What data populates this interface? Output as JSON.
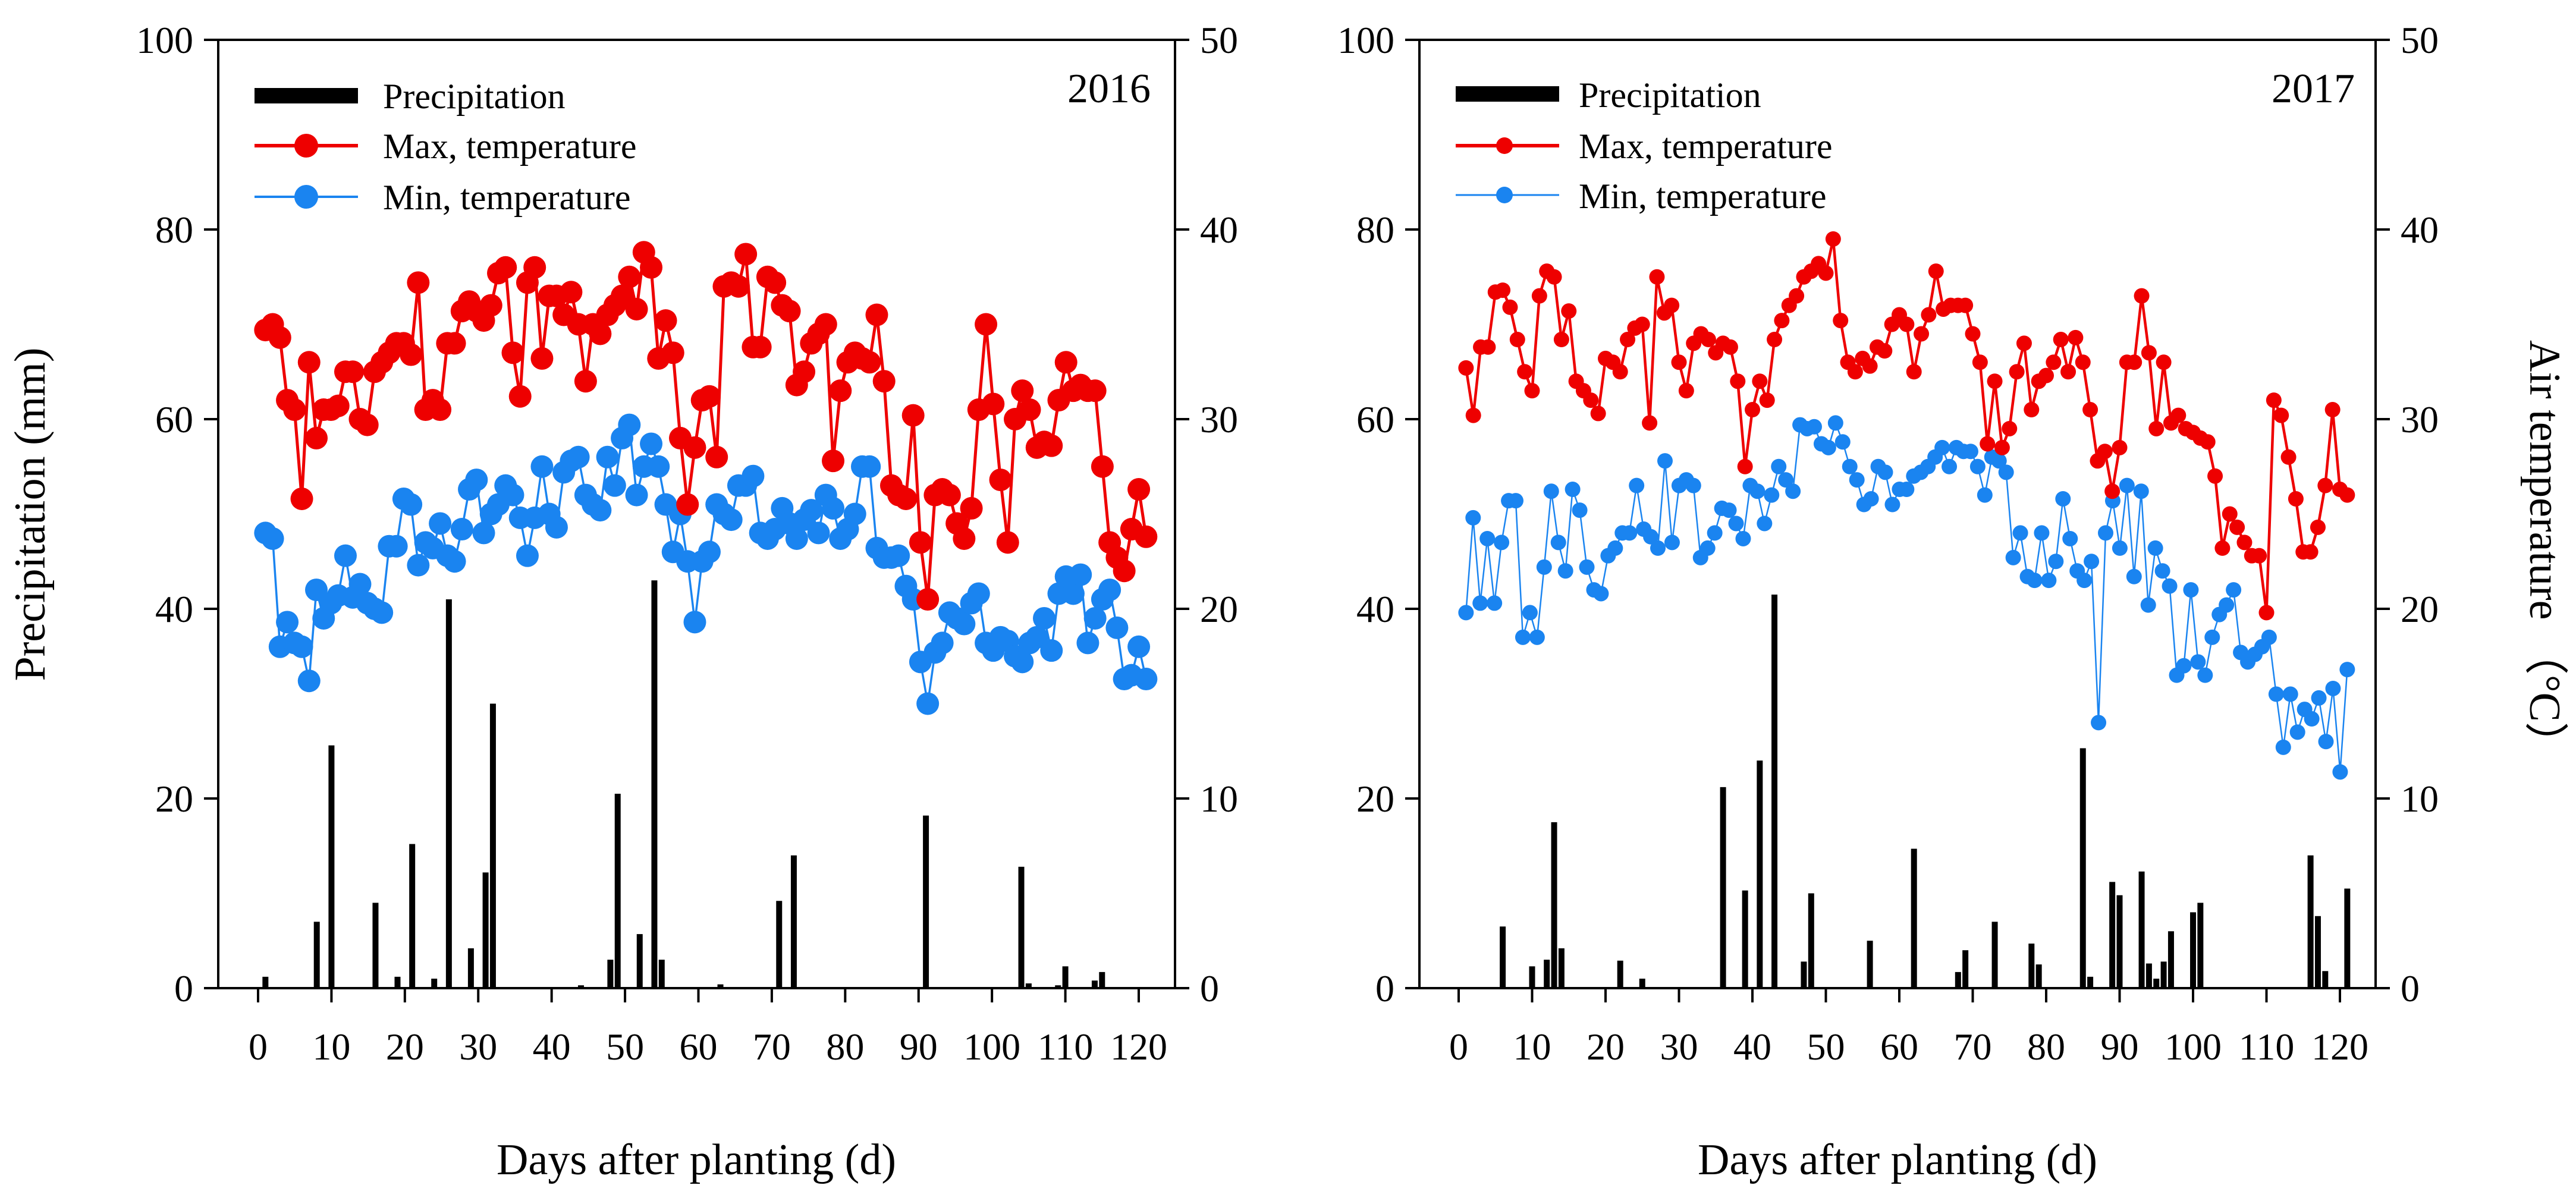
{
  "chart_data": [
    {
      "type": "bar+line",
      "year_label": "2016",
      "xlabel": "Days after planting (d)",
      "ylabel_left": "Precipitation (mm)",
      "ylabel_right": "Air temperature （°C）",
      "xlim": [
        0,
        120
      ],
      "xticks": [
        "0",
        "10",
        "20",
        "30",
        "40",
        "50",
        "60",
        "70",
        "80",
        "90",
        "100",
        "110",
        "120"
      ],
      "ylim_left": [
        0,
        100
      ],
      "yticks_left": [
        "0",
        "20",
        "40",
        "60",
        "80",
        "100"
      ],
      "ylim_right": [
        0,
        50
      ],
      "yticks_right": [
        "0",
        "10",
        "20",
        "30",
        "40",
        "50"
      ],
      "legend": [
        "Precipitation",
        "Max, temperature",
        "Min, temperature"
      ],
      "legend_position": "top-left",
      "colors": {
        "precip": "#000000",
        "max": "#ee0000",
        "min": "#1a84f0"
      },
      "precipitation": [
        [
          1,
          1.2
        ],
        [
          8,
          7
        ],
        [
          10,
          25.6
        ],
        [
          16,
          9
        ],
        [
          19,
          1.2
        ],
        [
          21,
          15.2
        ],
        [
          24,
          1
        ],
        [
          26,
          41
        ],
        [
          29,
          4.2
        ],
        [
          31,
          12.2
        ],
        [
          32,
          30
        ],
        [
          44,
          0.3
        ],
        [
          48,
          3
        ],
        [
          49,
          20.5
        ],
        [
          52,
          5.7
        ],
        [
          54,
          43
        ],
        [
          55,
          3
        ],
        [
          63,
          0.4
        ],
        [
          71,
          9.2
        ],
        [
          73,
          14
        ],
        [
          91,
          18.2
        ],
        [
          104,
          12.8
        ],
        [
          105,
          0.5
        ],
        [
          109,
          0.3
        ],
        [
          110,
          2.3
        ],
        [
          114,
          0.8
        ],
        [
          115,
          1.7
        ]
      ],
      "max_temperature": [
        34.7,
        35,
        34.3,
        31,
        30.5,
        25.8,
        33,
        29,
        30.5,
        30.5,
        30.7,
        32.5,
        32.5,
        30,
        29.7,
        32.5,
        33,
        33.5,
        34,
        34,
        33.4,
        37.2,
        30.5,
        31,
        30.5,
        34,
        34,
        35.7,
        36.2,
        35.7,
        35.2,
        36,
        37.7,
        38,
        33.5,
        31.2,
        37.2,
        38,
        33.2,
        36.5,
        36.5,
        35.5,
        36.7,
        35,
        32,
        35,
        34.5,
        35.5,
        36,
        36.5,
        37.5,
        35.8,
        38.8,
        38,
        33.2,
        35.2,
        33.5,
        29,
        25.5,
        28.5,
        31,
        31.2,
        28,
        37,
        37.2,
        37,
        38.7,
        33.8,
        33.8,
        37.5,
        37.2,
        36,
        35.7,
        31.8,
        32.5,
        34,
        34.5,
        35,
        27.8,
        31.5,
        33,
        33.5,
        33.2,
        33,
        35.5,
        32,
        26.5,
        26,
        25.8,
        30.2,
        23.5,
        20.5,
        26,
        26.3,
        26,
        24.5,
        23.7,
        25.3,
        30.5,
        35,
        30.8,
        26.8,
        23.5,
        30,
        31.5,
        30.5,
        28.5,
        28.8,
        28.6,
        31,
        33,
        31.5,
        31.8,
        31.5,
        31.5,
        27.5,
        23.5,
        22.7,
        22,
        24.2,
        26.3,
        23.8
      ],
      "min_temperature": [
        24,
        23.7,
        18,
        19.3,
        18.2,
        18,
        16.2,
        21,
        19.5,
        20.3,
        20.7,
        22.8,
        20.6,
        21.3,
        20.3,
        20,
        19.8,
        23.3,
        23.3,
        25.8,
        25.5,
        22.3,
        23.5,
        23.2,
        24.5,
        22.8,
        22.5,
        24.2,
        26.3,
        26.8,
        24,
        25,
        25.5,
        26.5,
        26,
        24.8,
        22.8,
        24.8,
        27.5,
        25,
        24.3,
        27.2,
        27.8,
        28,
        26,
        25.5,
        25.2,
        28,
        26.5,
        29,
        29.7,
        26,
        27.5,
        28.7,
        27.5,
        25.5,
        23,
        25,
        22.5,
        19.3,
        22.5,
        23,
        25.5,
        25,
        24.7,
        26.5,
        26.5,
        27,
        24,
        23.7,
        24.2,
        25.3,
        24.5,
        23.7,
        24.7,
        25.2,
        24,
        26,
        25.3,
        23.7,
        24.2,
        25,
        27.5,
        27.5,
        23.2,
        22.7,
        22.7,
        22.8,
        21.2,
        20.5,
        17.2,
        15,
        17.7,
        18.2,
        19.8,
        19.5,
        19.2,
        20.3,
        20.8,
        18.2,
        17.8,
        18.5,
        18.3,
        17.5,
        17.2,
        18.2,
        18.5,
        19.5,
        17.8,
        20.8,
        21.7,
        20.8,
        21.8,
        18.2,
        19.5,
        20.5,
        21,
        19,
        16.3,
        16.5,
        18,
        16.3
      ]
    },
    {
      "type": "bar+line",
      "year_label": "2017",
      "xlabel": "Days after planting (d)",
      "ylabel_left": "",
      "ylabel_right": "Air temperature （°C）",
      "xlim": [
        0,
        120
      ],
      "xticks": [
        "0",
        "10",
        "20",
        "30",
        "40",
        "50",
        "60",
        "70",
        "80",
        "90",
        "100",
        "110",
        "120"
      ],
      "ylim_left": [
        0,
        100
      ],
      "yticks_left": [
        "0",
        "20",
        "40",
        "60",
        "80",
        "100"
      ],
      "ylim_right": [
        0,
        50
      ],
      "yticks_right": [
        "0",
        "10",
        "20",
        "30",
        "40",
        "50"
      ],
      "legend": [
        "Precipitation",
        "Max, temperature",
        "Min, temperature"
      ],
      "legend_position": "top-left",
      "colors": {
        "precip": "#000000",
        "max": "#ee0000",
        "min": "#1a84f0"
      },
      "precipitation": [
        [
          6,
          6.5
        ],
        [
          10,
          2.3
        ],
        [
          12,
          3
        ],
        [
          13,
          17.5
        ],
        [
          14,
          4.2
        ],
        [
          22,
          2.9
        ],
        [
          25,
          1
        ],
        [
          36,
          21.2
        ],
        [
          39,
          10.3
        ],
        [
          41,
          24
        ],
        [
          43,
          41.5
        ],
        [
          47,
          2.8
        ],
        [
          48,
          10
        ],
        [
          56,
          5
        ],
        [
          62,
          14.7
        ],
        [
          68,
          1.7
        ],
        [
          69,
          4
        ],
        [
          73,
          7
        ],
        [
          78,
          4.7
        ],
        [
          79,
          2.5
        ],
        [
          85,
          25.3
        ],
        [
          86,
          1.2
        ],
        [
          89,
          11.2
        ],
        [
          90,
          9.8
        ],
        [
          93,
          12.3
        ],
        [
          94,
          2.6
        ],
        [
          95,
          1
        ],
        [
          96,
          2.8
        ],
        [
          97,
          6
        ],
        [
          100,
          8
        ],
        [
          101,
          9
        ],
        [
          116,
          14
        ],
        [
          117,
          7.6
        ],
        [
          118,
          1.8
        ],
        [
          121,
          10.5
        ]
      ],
      "max_temperature": [
        32.7,
        30.2,
        33.8,
        33.8,
        36.7,
        36.8,
        35.9,
        34.2,
        32.5,
        31.5,
        36.5,
        37.8,
        37.5,
        34.2,
        35.7,
        32,
        31.5,
        31,
        30.3,
        33.2,
        33,
        32.5,
        34.2,
        34.8,
        35,
        29.8,
        37.5,
        35.6,
        36,
        33,
        31.5,
        34,
        34.5,
        34.2,
        33.5,
        34,
        33.8,
        32,
        27.5,
        30.5,
        32,
        31,
        34.2,
        35.2,
        36,
        36.5,
        37.5,
        37.8,
        38.2,
        37.7,
        39.5,
        35.2,
        33,
        32.5,
        33.2,
        32.8,
        33.8,
        33.6,
        35,
        35.5,
        35,
        32.5,
        34.5,
        35.5,
        37.8,
        35.8,
        36,
        36,
        36,
        34.5,
        33,
        28.7,
        32,
        28.5,
        29.5,
        32.5,
        34,
        30.5,
        32,
        32.3,
        33,
        34.2,
        32.5,
        34.3,
        33,
        30.5,
        27.8,
        28.3,
        26.2,
        28.5,
        33,
        33,
        36.5,
        33.5,
        29.5,
        33,
        29.8,
        30.2,
        29.5,
        29.3,
        29,
        28.8,
        27,
        23.2,
        25,
        24.3,
        23.5,
        22.8,
        22.8,
        19.8,
        31,
        30.2,
        28,
        25.8,
        23,
        23,
        24.3,
        26.5,
        30.5,
        26.3,
        26
      ],
      "min_temperature": [
        19.8,
        24.8,
        20.3,
        23.7,
        20.3,
        23.5,
        25.7,
        25.7,
        18.5,
        19.8,
        18.5,
        22.2,
        26.2,
        23.5,
        22,
        26.3,
        25.2,
        22.2,
        21,
        20.8,
        22.8,
        23.2,
        24,
        24,
        26.5,
        24.2,
        23.8,
        23.2,
        27.8,
        23.5,
        26.5,
        26.8,
        26.5,
        22.7,
        23.2,
        24,
        25.3,
        25.2,
        24.5,
        23.7,
        26.5,
        26.2,
        24.5,
        26,
        27.5,
        26.8,
        26.2,
        29.7,
        29.5,
        29.6,
        28.7,
        28.5,
        29.8,
        28.8,
        27.5,
        26.8,
        25.5,
        25.8,
        27.5,
        27.2,
        25.5,
        26.3,
        26.3,
        27,
        27.2,
        27.5,
        28,
        28.5,
        27.5,
        28.5,
        28.3,
        28.3,
        27.5,
        26,
        28,
        27.8,
        27.2,
        22.7,
        24,
        21.7,
        21.5,
        24,
        21.5,
        22.5,
        25.8,
        23.7,
        22,
        21.5,
        22.5,
        14,
        24,
        25.7,
        23.2,
        26.5,
        21.7,
        26.2,
        20.2,
        23.2,
        22,
        21.2,
        16.5,
        17,
        21,
        17.2,
        16.5,
        18.5,
        19.7,
        20.2,
        21,
        17.7,
        17.2,
        17.6,
        18,
        18.5,
        15.5,
        12.7,
        15.5,
        13.5,
        14.7,
        14.2,
        15.3,
        13,
        15.8,
        11.4,
        16.8
      ]
    }
  ]
}
